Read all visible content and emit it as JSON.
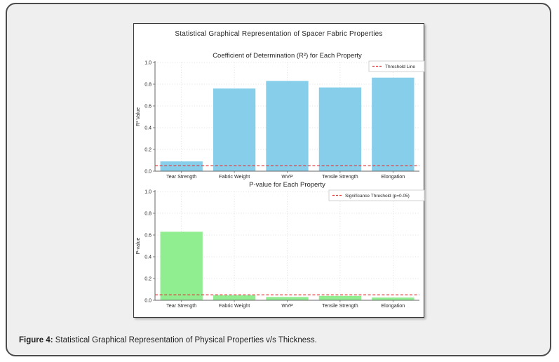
{
  "figure": {
    "suptitle": "Statistical Graphical Representation of Spacer Fabric Properties"
  },
  "caption": {
    "prefix": "Figure 4:",
    "text": " Statistical Graphical Representation of Physical Properties v/s Thickness."
  },
  "colors": {
    "outer_background": "#efefef",
    "panel_background": "#ffffff",
    "bar_blue": "#87CEEB",
    "bar_green": "#90EE90",
    "threshold_red": "#e43b3b",
    "axis_gray": "#666666",
    "grid_gray": "#d6d6d6"
  },
  "chart_data": [
    {
      "type": "bar",
      "title": "Coefficient of Determination (R²) for Each Property",
      "categories": [
        "Tear Strength",
        "Fabric Weight",
        "WVP",
        "Tensile Strength",
        "Elongation"
      ],
      "values": [
        0.09,
        0.76,
        0.83,
        0.77,
        0.86
      ],
      "xlabel": "",
      "ylabel": "R² Value",
      "ylim": [
        0,
        1.0
      ],
      "yticks": [
        0.0,
        0.2,
        0.4,
        0.6,
        0.8,
        1.0
      ],
      "grid": true,
      "bar_color": "#87CEEB",
      "threshold": {
        "value": 0.05,
        "label": "Threshold Line",
        "color": "#e43b3b",
        "style": "dashed"
      },
      "legend_position": "upper right"
    },
    {
      "type": "bar",
      "title": "P-value for Each Property",
      "categories": [
        "Tear Strength",
        "Fabric Weight",
        "WVP",
        "Tensile Strength",
        "Elongation"
      ],
      "values": [
        0.63,
        0.045,
        0.03,
        0.04,
        0.025
      ],
      "xlabel": "",
      "ylabel": "P-value",
      "ylim": [
        0,
        1.0
      ],
      "yticks": [
        0.0,
        0.2,
        0.4,
        0.6,
        0.8,
        1.0
      ],
      "grid": true,
      "bar_color": "#90EE90",
      "threshold": {
        "value": 0.05,
        "label": "Significance Threshold (p=0.05)",
        "color": "#e43b3b",
        "style": "dashed"
      },
      "legend_position": "upper right"
    }
  ]
}
